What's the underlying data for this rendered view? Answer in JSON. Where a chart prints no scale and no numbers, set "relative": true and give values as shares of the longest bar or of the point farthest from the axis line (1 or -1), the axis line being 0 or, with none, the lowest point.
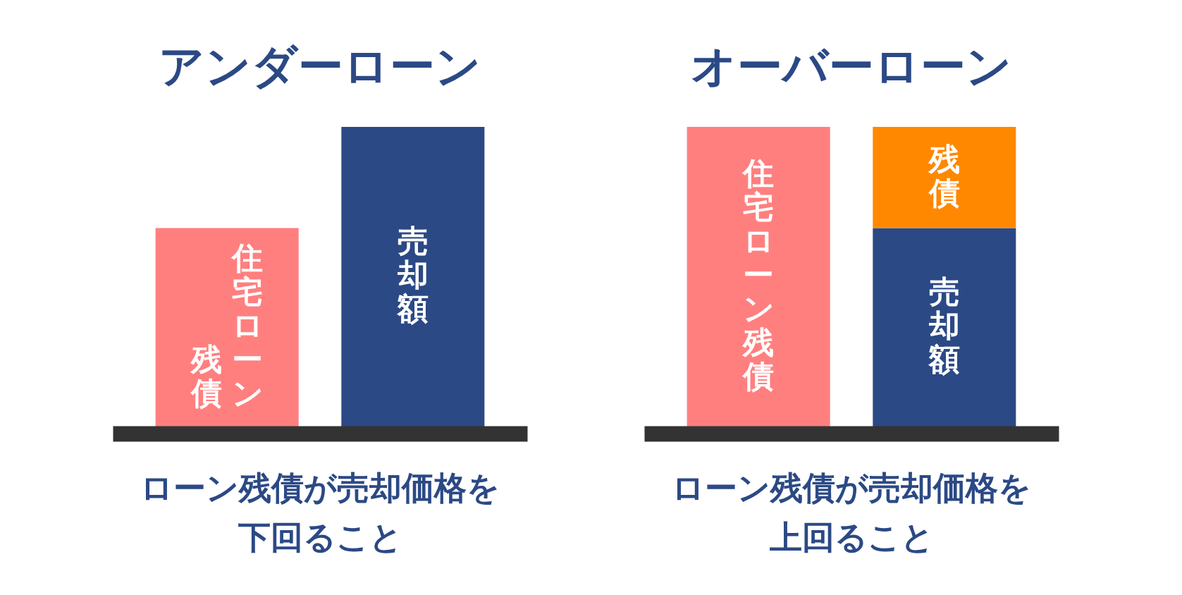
{
  "chart_data": [
    {
      "type": "bar",
      "title": "アンダーローン",
      "categories": [
        null,
        null
      ],
      "relative": true,
      "stacked": true,
      "series": [
        {
          "name": "住宅ローン残債",
          "color": "#ff7f7f",
          "values": [
            0.67,
            null
          ]
        },
        {
          "name": "売却額",
          "color": "#2b4985",
          "values": [
            null,
            1
          ]
        }
      ],
      "annotations": [
        "ローン残債が売却価格を下回ること"
      ]
    },
    {
      "type": "bar",
      "title": "オーバーローン",
      "categories": [
        null,
        null
      ],
      "relative": true,
      "stacked": true,
      "series": [
        {
          "name": "住宅ローン残債",
          "color": "#ff7f7f",
          "values": [
            1,
            null
          ]
        },
        {
          "name": "売却額",
          "color": "#2b4985",
          "values": [
            null,
            0.67
          ]
        },
        {
          "name": "残債",
          "color": "#ff8800",
          "values": [
            null,
            0.33
          ]
        }
      ],
      "annotations": [
        "ローン残債が売却価格を上回ること"
      ]
    }
  ]
}
